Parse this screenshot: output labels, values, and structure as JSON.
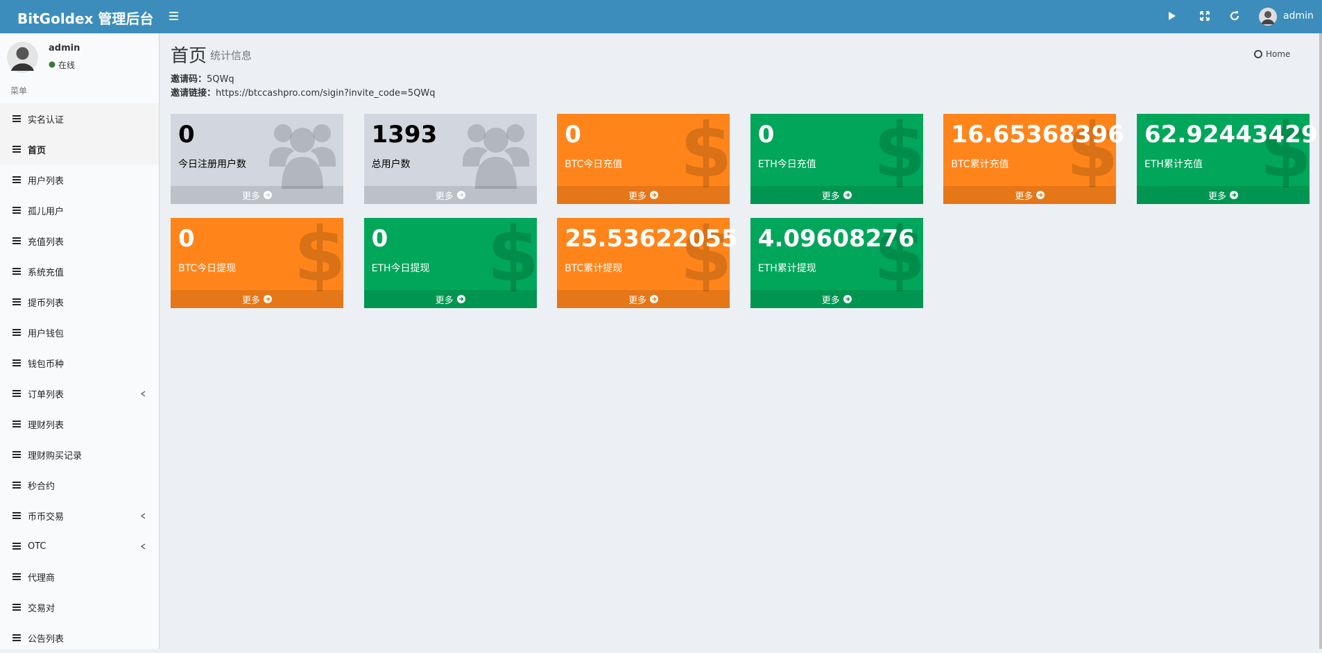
{
  "header": {
    "brand": "BitGoldex 管理后台",
    "user": "admin"
  },
  "sidebar": {
    "user_name": "admin",
    "status": "在线",
    "menu_label": "菜单",
    "items": [
      {
        "label": "实名认证",
        "highlight": true
      },
      {
        "label": "首页",
        "highlight": true,
        "active": true
      },
      {
        "label": "用户列表"
      },
      {
        "label": "孤儿用户"
      },
      {
        "label": "充值列表"
      },
      {
        "label": "系统充值"
      },
      {
        "label": "提币列表"
      },
      {
        "label": "用户钱包"
      },
      {
        "label": "钱包币种"
      },
      {
        "label": "订单列表",
        "submenu": true
      },
      {
        "label": "理财列表"
      },
      {
        "label": "理财购买记录"
      },
      {
        "label": "秒合约"
      },
      {
        "label": "币币交易",
        "submenu": true
      },
      {
        "label": "OTC",
        "submenu": true
      },
      {
        "label": "代理商"
      },
      {
        "label": "交易对"
      },
      {
        "label": "公告列表"
      }
    ]
  },
  "content": {
    "title": "首页",
    "subtitle": "统计信息",
    "breadcrumb": "Home",
    "invite_code_label": "邀请码：",
    "invite_code": "5QWq",
    "invite_link_label": "邀请链接：",
    "invite_link": "https://btccashpro.com/sigin?invite_code=5QWq",
    "more_text": "更多",
    "boxes": [
      {
        "value": 0,
        "label": "今日注册用户数",
        "color": "#d2d6de"
      },
      {
        "value": 1393,
        "label": "总用户数",
        "color": "#d2d6de"
      },
      {
        "value": 0,
        "label": "BTC今日充值",
        "color": "#ff851b"
      },
      {
        "value": 0,
        "label": "ETH今日充值",
        "color": "#00a65a"
      },
      {
        "value": 16.65368396,
        "label": "BTC累计充值",
        "color": "#ff851b"
      },
      {
        "value": 62.92443429,
        "label": "ETH累计充值",
        "color": "#00a65a"
      },
      {
        "value": 0,
        "label": "BTC今日提现",
        "color": "#ff851b"
      },
      {
        "value": 0,
        "label": "ETH今日提现",
        "color": "#00a65a"
      },
      {
        "value": 25.53622055,
        "label": "BTC累计提现",
        "color": "#ff851b"
      },
      {
        "value": 4.09608276,
        "label": "ETH累计提现",
        "color": "#00a65a"
      }
    ]
  }
}
